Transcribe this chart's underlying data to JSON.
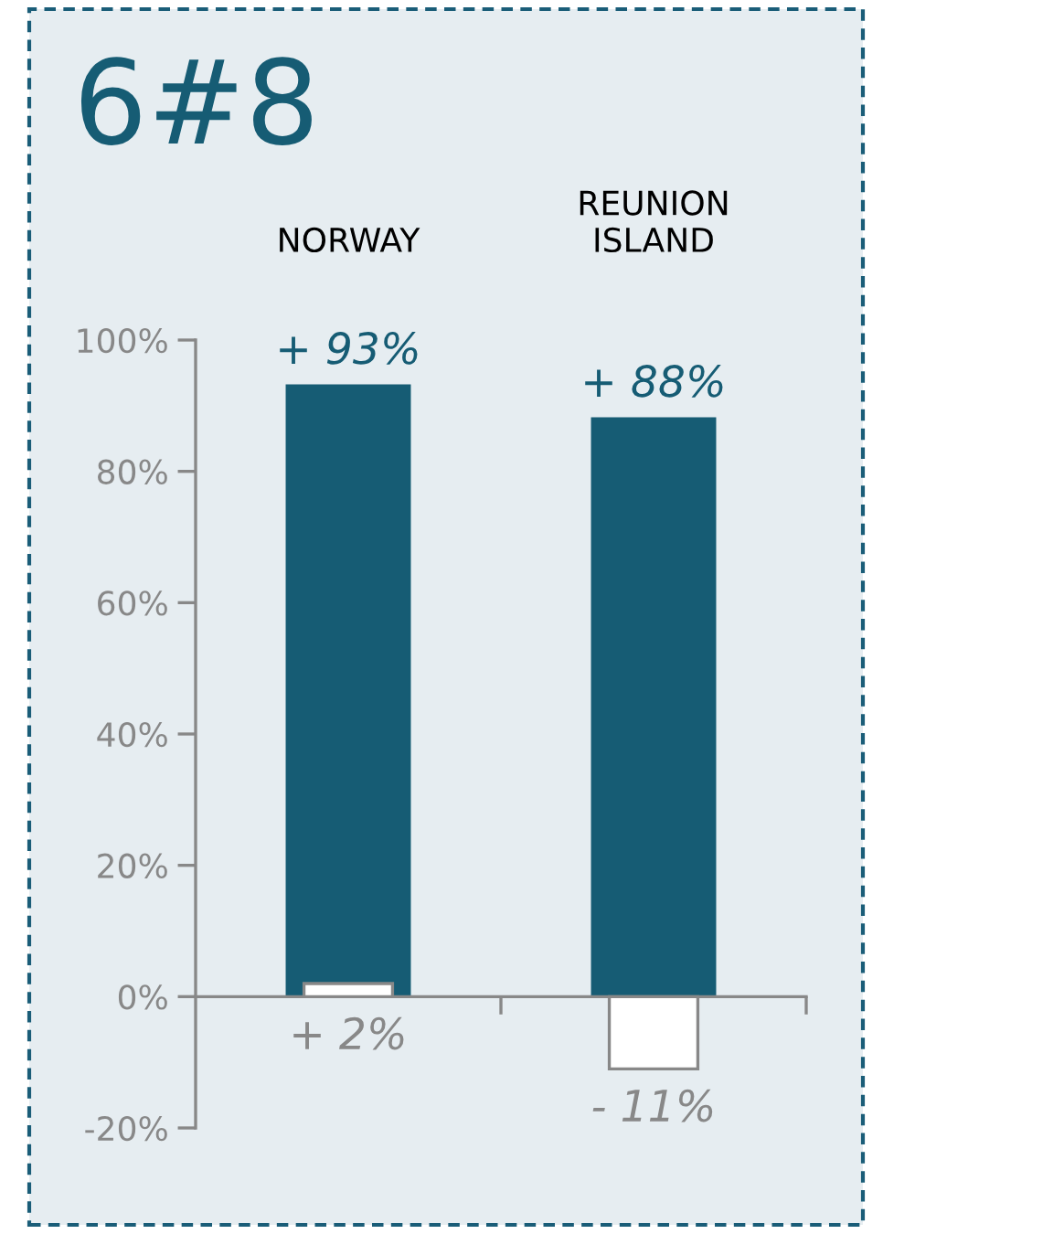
{
  "chart_data": {
    "type": "bar",
    "title": "6#8",
    "categories": [
      "NORWAY",
      "REUNION\nISLAND"
    ],
    "series": [
      {
        "color": "#165c74",
        "values": [
          93,
          88
        ],
        "value_labels": [
          "+ 93%",
          "+ 88%"
        ]
      },
      {
        "color": "#ffffff",
        "values": [
          2,
          -11
        ],
        "value_labels": [
          "+ 2%",
          "- 11%"
        ]
      }
    ],
    "ylim": [
      -20,
      100
    ],
    "yticks": [
      {
        "value": -20,
        "label": "-20%"
      },
      {
        "value": 0,
        "label": "0%"
      },
      {
        "value": 20,
        "label": "20%"
      },
      {
        "value": 40,
        "label": "40%"
      },
      {
        "value": 60,
        "label": "60%"
      },
      {
        "value": 80,
        "label": "80%"
      },
      {
        "value": 100,
        "label": "100%"
      }
    ],
    "legend": false
  }
}
